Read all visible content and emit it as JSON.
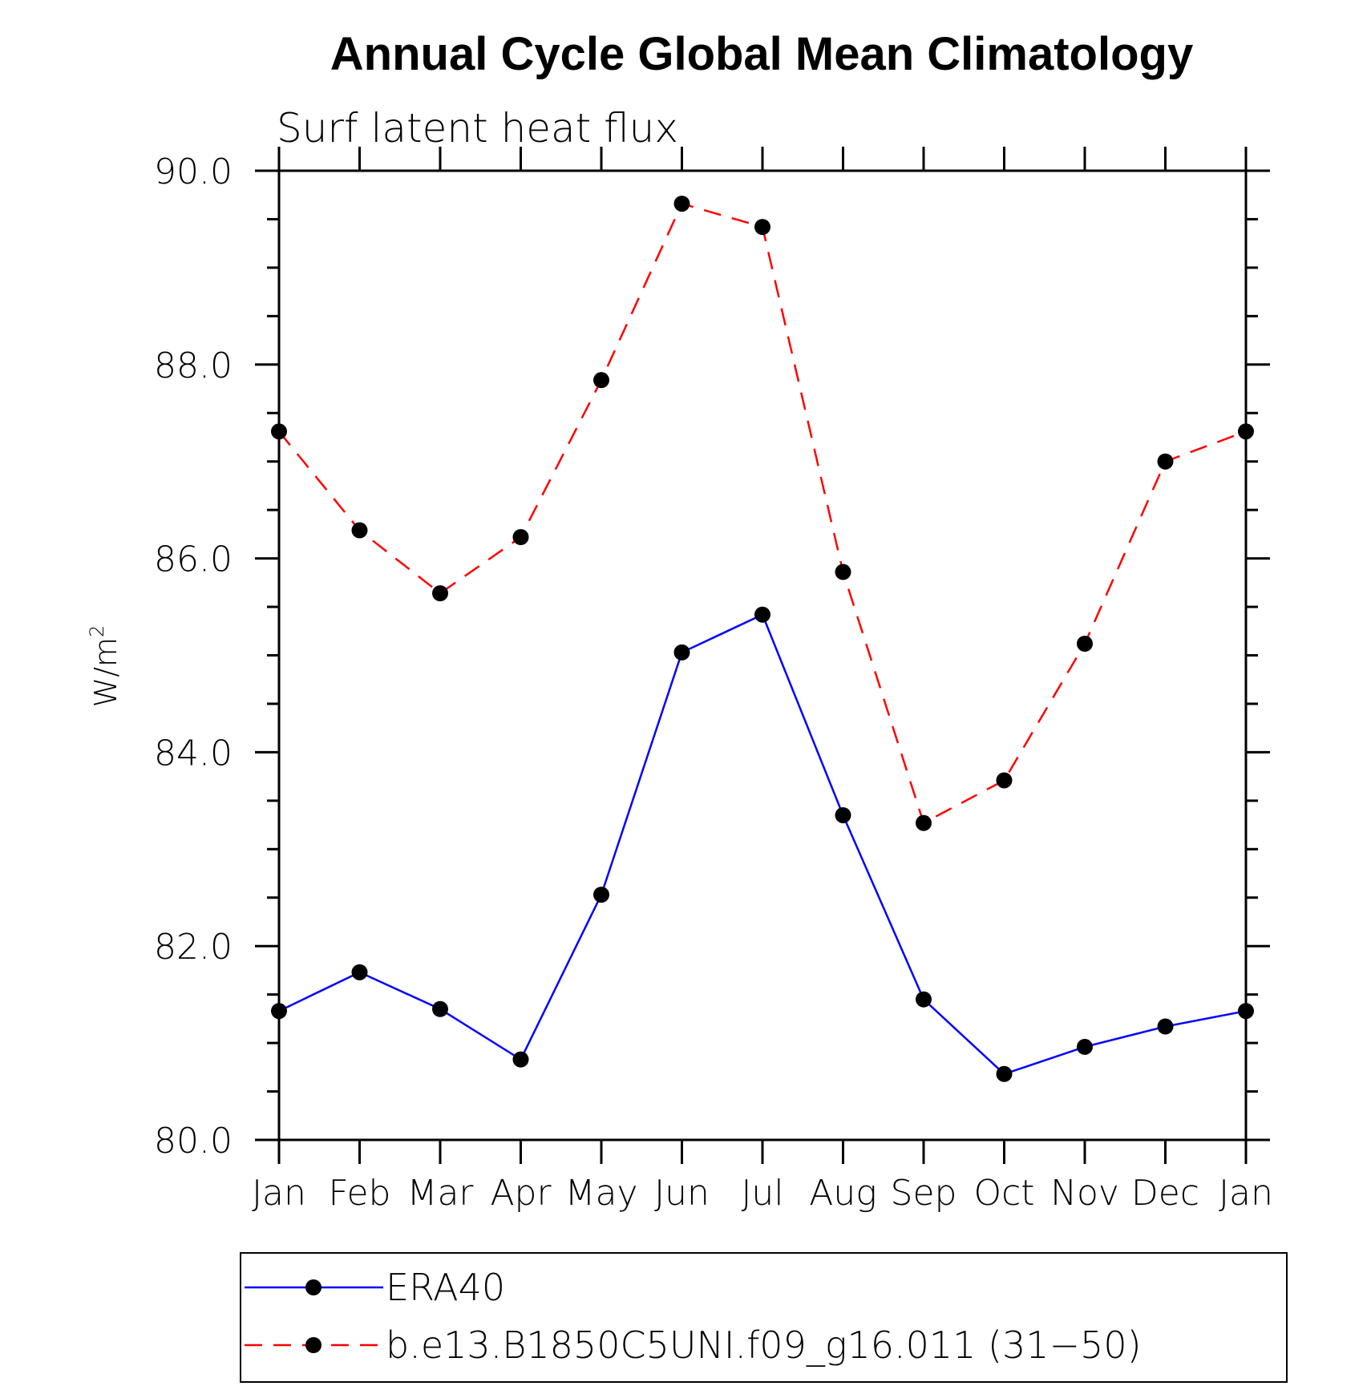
{
  "chart_data": {
    "type": "line",
    "title": "Annual Cycle Global Mean Climatology",
    "subtitle": "Surf latent heat flux",
    "ylabel": "W/m",
    "ylabel_superscript": "2",
    "ylim": [
      80.0,
      90.0
    ],
    "yticks": [
      "80.0",
      "82.0",
      "84.0",
      "86.0",
      "88.0",
      "90.0"
    ],
    "categories": [
      "Jan",
      "Feb",
      "Mar",
      "Apr",
      "May",
      "Jun",
      "Jul",
      "Aug",
      "Sep",
      "Oct",
      "Nov",
      "Dec",
      "Jan"
    ],
    "series": [
      {
        "name": "ERA40",
        "color": "#0000ff",
        "line_style": "solid",
        "values": [
          81.33,
          81.73,
          81.35,
          80.83,
          82.53,
          85.03,
          85.42,
          83.35,
          81.45,
          80.68,
          80.96,
          81.17,
          81.33
        ]
      },
      {
        "name": "b.e13.B1850C5UNI.f09_g16.011 (31−50)",
        "color": "#ff0000",
        "line_style": "dashed",
        "values": [
          87.31,
          86.29,
          85.64,
          86.22,
          87.84,
          89.66,
          89.42,
          85.86,
          83.27,
          83.71,
          85.12,
          87.0,
          87.31
        ]
      }
    ],
    "legend_position": "bottom",
    "grid": false
  }
}
